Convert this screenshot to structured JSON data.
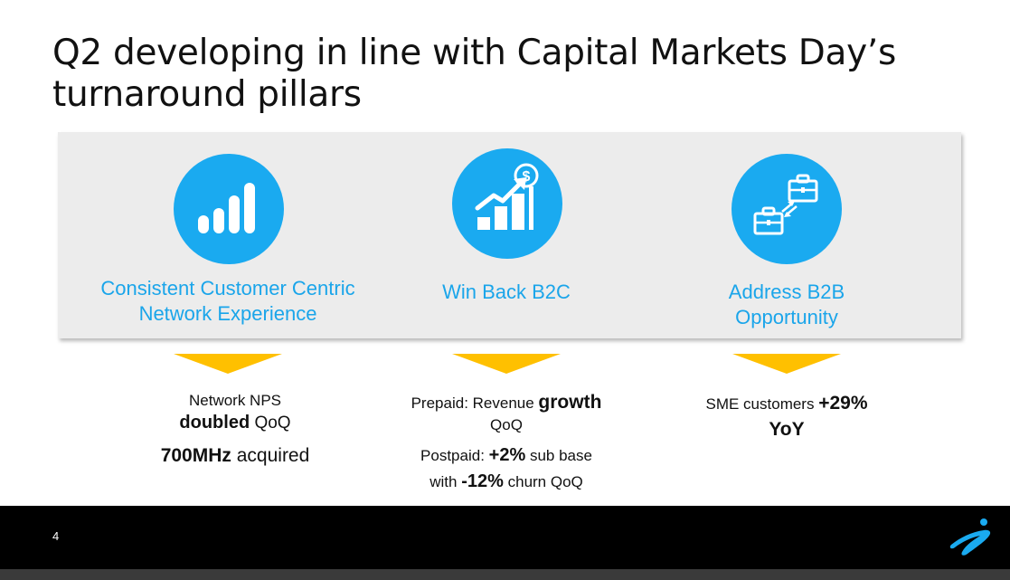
{
  "slide": {
    "title_line1": "Q2 developing in line with Capital Markets Day’s",
    "title_line2": "turnaround pillars",
    "page_number": "4"
  },
  "colors": {
    "accent_blue": "#1aaaf0",
    "label_blue": "#1aa5ea",
    "chevron_yellow": "#ffc000",
    "panel_gray": "#ececec",
    "footer_black": "#000000"
  },
  "pillars": [
    {
      "icon": "signal-bars-icon",
      "label_line1": "Consistent Customer Centric",
      "label_line2": "Network Experience"
    },
    {
      "icon": "growth-chart-dollar-icon",
      "label_line1": "Win Back B2C"
    },
    {
      "icon": "briefcase-exchange-icon",
      "label_line1": "Address B2B",
      "label_line2": "Opportunity"
    }
  ],
  "stats": {
    "network": {
      "line1": "Network NPS",
      "line2_bold": "doubled",
      "line2_rest": " QoQ",
      "line3_bold": "700MHz",
      "line3_rest": " acquired"
    },
    "b2c": {
      "prepaid_prefix": "Prepaid:  Revenue ",
      "prepaid_bold": "growth",
      "prepaid_suffix": "QoQ",
      "postpaid_prefix": "Postpaid:  ",
      "postpaid_bold1": "+2%",
      "postpaid_mid": " sub base",
      "postpaid_with": "with ",
      "postpaid_bold2": "-12%",
      "postpaid_end": " churn QoQ"
    },
    "b2b": {
      "line1_prefix": "SME customers ",
      "line1_bold": "+29%",
      "line2_bold": "YoY"
    }
  }
}
